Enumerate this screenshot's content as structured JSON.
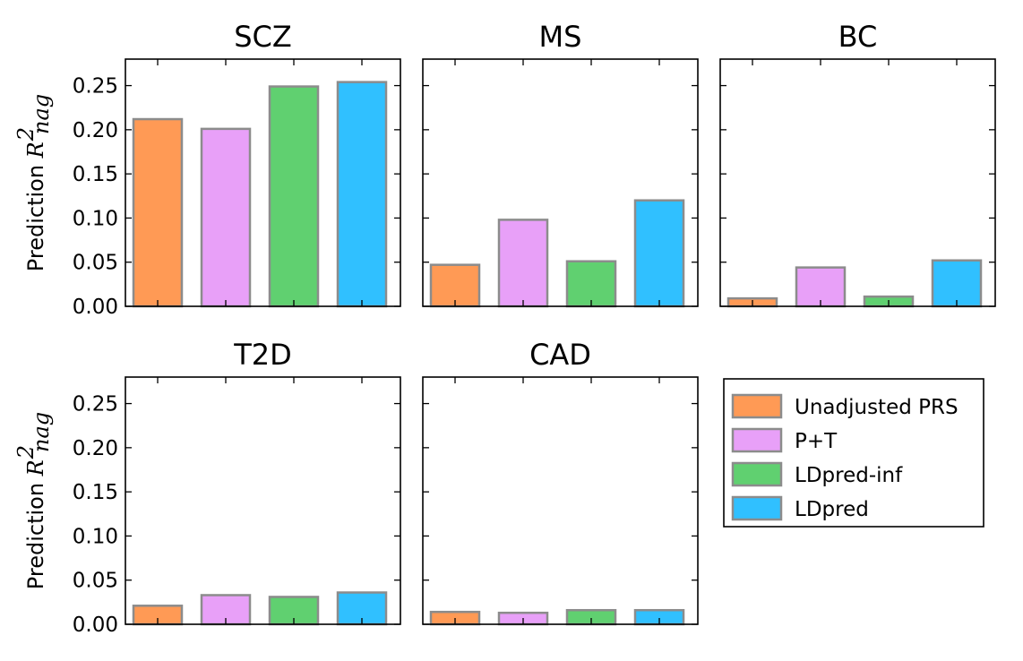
{
  "chart_data": {
    "type": "bar",
    "layout": "small-multiples",
    "ylim": [
      0,
      0.28
    ],
    "yticks": [
      "0.00",
      "0.05",
      "0.10",
      "0.15",
      "0.20",
      "0.25"
    ],
    "ylabel": "Prediction",
    "ylabel_math": "R",
    "ylabel_sup": "2",
    "ylabel_sub": "nag",
    "grid": false,
    "legend_position": "lower-right",
    "series": [
      {
        "name": "Unadjusted PRS",
        "color": "#FF9A55"
      },
      {
        "name": "P+T",
        "color": "#E8A0F8"
      },
      {
        "name": "LDpred-inf",
        "color": "#60D070"
      },
      {
        "name": "LDpred",
        "color": "#30C0FF"
      }
    ],
    "panels": [
      {
        "title": "SCZ",
        "values": [
          0.212,
          0.201,
          0.249,
          0.254
        ]
      },
      {
        "title": "MS",
        "values": [
          0.047,
          0.098,
          0.051,
          0.12
        ]
      },
      {
        "title": "BC",
        "values": [
          0.009,
          0.044,
          0.011,
          0.052
        ]
      },
      {
        "title": "T2D",
        "values": [
          0.021,
          0.033,
          0.031,
          0.036
        ]
      },
      {
        "title": "CAD",
        "values": [
          0.014,
          0.013,
          0.016,
          0.016
        ]
      }
    ]
  }
}
